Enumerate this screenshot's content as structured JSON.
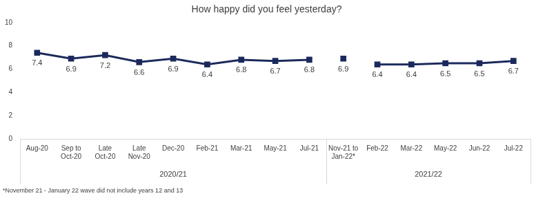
{
  "chart_data": {
    "type": "line",
    "title": "How happy did you feel yesterday?",
    "categories": [
      "Aug-20",
      "Sep to Oct-20",
      "Late Oct-20",
      "Late Nov-20",
      "Dec-20",
      "Feb-21",
      "Mar-21",
      "May-21",
      "Jul-21",
      "Nov-21 to Jan-22*",
      "Feb-22",
      "Mar-22",
      "May-22",
      "Jun-22",
      "Jul-22"
    ],
    "series": [
      {
        "color": "#1b2a5c",
        "values": [
          7.4,
          6.9,
          7.2,
          6.6,
          6.9,
          6.4,
          6.8,
          6.7,
          6.8,
          null,
          null,
          null,
          null,
          null,
          null
        ]
      },
      {
        "color": "#1b2a5c",
        "values": [
          null,
          null,
          null,
          null,
          null,
          null,
          null,
          null,
          null,
          6.9,
          null,
          null,
          null,
          null,
          null
        ]
      },
      {
        "color": "#1b2a5c",
        "values": [
          null,
          null,
          null,
          null,
          null,
          null,
          null,
          null,
          null,
          null,
          6.4,
          6.4,
          6.5,
          6.5,
          6.7
        ]
      }
    ],
    "marker": "square",
    "ylim": [
      0,
      10
    ],
    "yticks": [
      0,
      2,
      4,
      6,
      8,
      10
    ],
    "grid": false,
    "data_labels": true,
    "category_groups": [
      {
        "label": "2020/21",
        "from": "Aug-20",
        "to": "Jul-21"
      },
      {
        "label": "2021/22",
        "from": "Nov-21 to Jan-22*",
        "to": "Jul-22"
      }
    ],
    "note": "*November 21 - January 22 wave did not include years 12 and 13"
  }
}
